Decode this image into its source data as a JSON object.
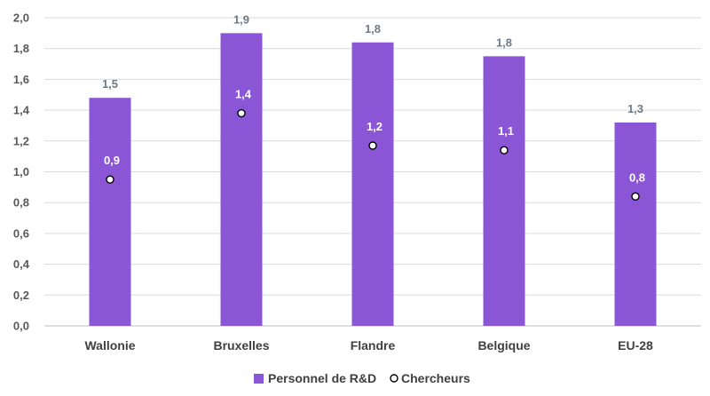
{
  "chart_data": {
    "type": "bar",
    "categories": [
      "Wallonie",
      "Bruxelles",
      "Flandre",
      "Belgique",
      "EU-28"
    ],
    "series": [
      {
        "name": "Personnel de R&D",
        "type": "bar",
        "values": [
          1.48,
          1.9,
          1.84,
          1.75,
          1.32
        ],
        "labels": [
          "1,5",
          "1,9",
          "1,8",
          "1,8",
          "1,3"
        ],
        "color": "#8a56d6"
      },
      {
        "name": "Chercheurs",
        "type": "scatter",
        "values": [
          0.95,
          1.38,
          1.17,
          1.14,
          0.84
        ],
        "labels": [
          "0,9",
          "1,4",
          "1,2",
          "1,1",
          "0,8"
        ],
        "color": "#ffffff"
      }
    ],
    "title": "",
    "xlabel": "",
    "ylabel": "",
    "ylim": [
      0,
      2.0
    ],
    "yticks": [
      "0,0",
      "0,2",
      "0,4",
      "0,6",
      "0,8",
      "1,0",
      "1,2",
      "1,4",
      "1,6",
      "1,8",
      "2,0"
    ],
    "grid": true,
    "legend": "bottom-center"
  }
}
